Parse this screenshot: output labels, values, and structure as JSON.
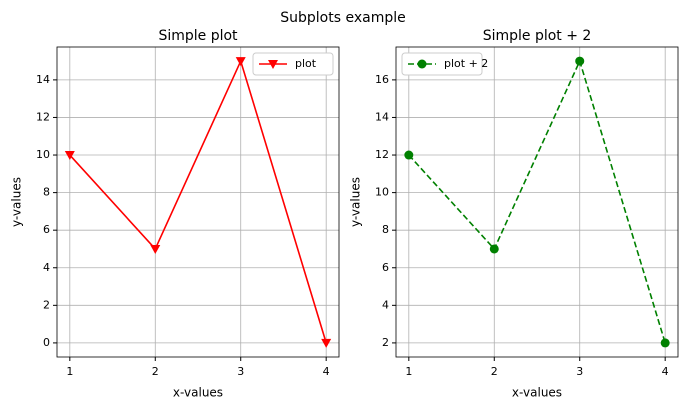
{
  "title": "Subplots example",
  "chart_data": [
    {
      "type": "line",
      "title": "Simple plot",
      "xlabel": "x-values",
      "ylabel": "y-values",
      "x": [
        1,
        2,
        3,
        4
      ],
      "series": [
        {
          "name": "plot",
          "color": "#ff0000",
          "values": [
            10,
            5,
            15,
            0
          ],
          "marker": "triangle-down",
          "linestyle": "solid"
        }
      ],
      "xlim": [
        0.85,
        4.15
      ],
      "xticks": [
        1,
        2,
        3,
        4
      ],
      "ylim": [
        -0.75,
        15.75
      ],
      "yticks": [
        0,
        2,
        4,
        6,
        8,
        10,
        12,
        14
      ],
      "grid": true,
      "legend": "upper right"
    },
    {
      "type": "line",
      "title": "Simple plot + 2",
      "xlabel": "x-values",
      "ylabel": "y-values",
      "x": [
        1,
        2,
        3,
        4
      ],
      "series": [
        {
          "name": "plot + 2",
          "color": "#008000",
          "values": [
            12,
            7,
            17,
            2
          ],
          "marker": "circle",
          "linestyle": "dashed"
        }
      ],
      "xlim": [
        0.85,
        4.15
      ],
      "xticks": [
        1,
        2,
        3,
        4
      ],
      "ylim": [
        1.25,
        17.75
      ],
      "yticks": [
        2,
        4,
        6,
        8,
        10,
        12,
        14,
        16
      ],
      "grid": true,
      "legend": "upper left"
    }
  ]
}
